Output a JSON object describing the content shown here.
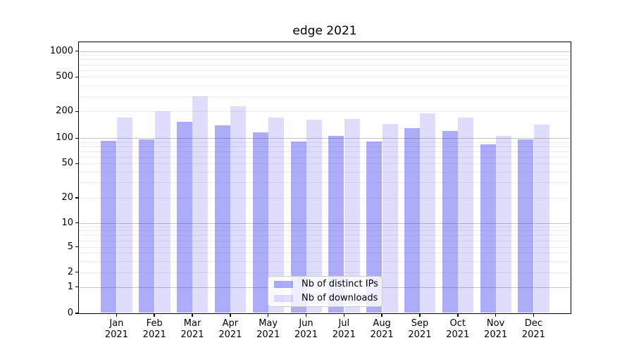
{
  "title": "edge 2021",
  "legend": {
    "items": [
      {
        "label": "Nb of distinct IPs"
      },
      {
        "label": "Nb of downloads"
      }
    ]
  },
  "y_axis": {
    "tick_labels": [
      "0",
      "1",
      "2",
      "5",
      "10",
      "20",
      "50",
      "100",
      "200",
      "500",
      "1000"
    ]
  },
  "x_axis": {
    "months": [
      "Jan",
      "Feb",
      "Mar",
      "Apr",
      "May",
      "Jun",
      "Jul",
      "Aug",
      "Sep",
      "Oct",
      "Nov",
      "Dec"
    ],
    "year": "2021"
  },
  "chart_data": {
    "type": "bar",
    "title": "edge 2021",
    "categories": [
      "Jan 2021",
      "Feb 2021",
      "Mar 2021",
      "Apr 2021",
      "May 2021",
      "Jun 2021",
      "Jul 2021",
      "Aug 2021",
      "Sep 2021",
      "Oct 2021",
      "Nov 2021",
      "Dec 2021"
    ],
    "series": [
      {
        "name": "Nb of distinct IPs",
        "color": "#2f2fef",
        "alpha": 0.4,
        "values": [
          93,
          97,
          154,
          140,
          117,
          92,
          107,
          91,
          130,
          120,
          85,
          97
        ]
      },
      {
        "name": "Nb of downloads",
        "color": "#2f2fef",
        "alpha": 0.16,
        "values": [
          172,
          202,
          297,
          230,
          171,
          163,
          166,
          146,
          190,
          172,
          107,
          143
        ]
      }
    ],
    "xlabel": "",
    "ylabel": "",
    "y_scale": "symlog",
    "y_ticks": [
      0,
      1,
      2,
      5,
      10,
      20,
      50,
      100,
      200,
      500,
      1000
    ],
    "ylim": [
      0,
      1300
    ],
    "grid": true,
    "grid_major_color": "#c6c6c6",
    "grid_minor_color": "#ececec",
    "legend_position": "lower center"
  }
}
